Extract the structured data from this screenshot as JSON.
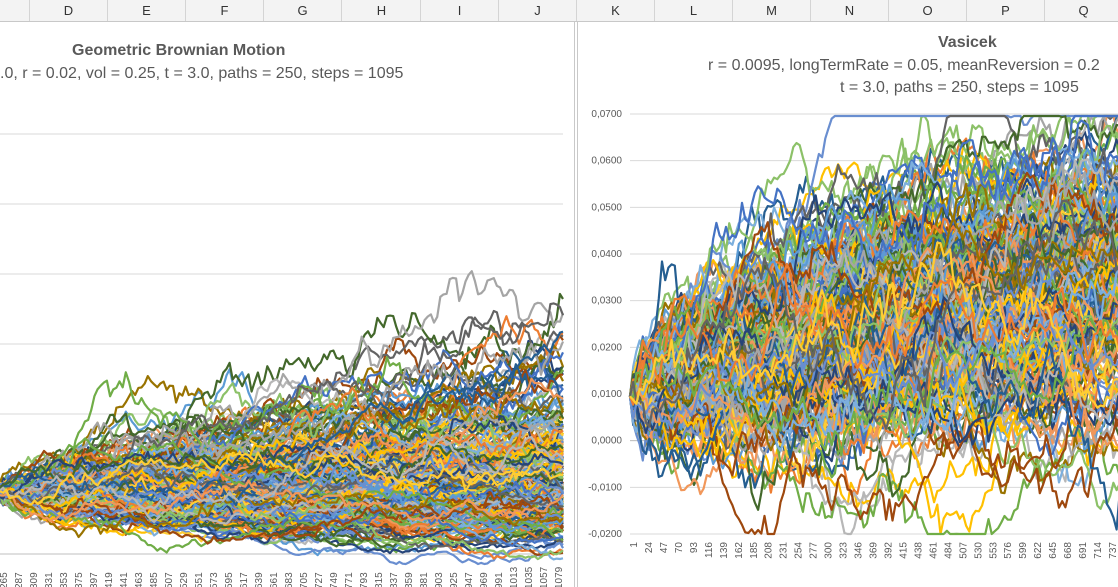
{
  "sheet": {
    "columns": [
      "D",
      "E",
      "F",
      "G",
      "H",
      "I",
      "J",
      "K",
      "L",
      "M",
      "N",
      "O",
      "P",
      "Q"
    ]
  },
  "chart_data": [
    {
      "type": "line",
      "title": "Geometric Brownian Motion",
      "subtitle": ".0, r = 0.02, vol = 0.25, t = 3.0, paths = 250, steps = 1095",
      "x_tick_labels": [
        "265",
        "287",
        "309",
        "331",
        "353",
        "375",
        "397",
        "419",
        "441",
        "463",
        "485",
        "507",
        "529",
        "551",
        "573",
        "595",
        "617",
        "639",
        "661",
        "683",
        "705",
        "727",
        "749",
        "771",
        "793",
        "815",
        "837",
        "859",
        "881",
        "903",
        "925",
        "947",
        "969",
        "991",
        "1013",
        "1035",
        "1057",
        "1079"
      ],
      "steps": 1095,
      "paths": 250,
      "ylim": [
        0.5,
        3.5
      ],
      "grid": true,
      "params": {
        "r": 0.02,
        "vol": 0.25,
        "t": 3.0
      }
    },
    {
      "type": "line",
      "title": "Vasicek",
      "subtitle_line1": "r = 0.0095, longTermRate = 0.05, meanReversion = 0.2",
      "subtitle_line2": "t = 3.0, paths = 250, steps = 1095",
      "y_tick_labels": [
        "0,0700",
        "0,0600",
        "0,0500",
        "0,0400",
        "0,0300",
        "0,0200",
        "0,0100",
        "0,0000",
        "-0,0100",
        "-0,0200"
      ],
      "ylim": [
        -0.02,
        0.07
      ],
      "x_tick_labels": [
        "1",
        "24",
        "47",
        "70",
        "93",
        "116",
        "139",
        "162",
        "185",
        "208",
        "231",
        "254",
        "277",
        "300",
        "323",
        "346",
        "369",
        "392",
        "415",
        "438",
        "461",
        "484",
        "507",
        "530",
        "553",
        "576",
        "599",
        "622",
        "645",
        "668",
        "691",
        "714",
        "737"
      ],
      "steps": 1095,
      "paths": 250,
      "grid": true,
      "params": {
        "r0": 0.0095,
        "longTermRate": 0.05,
        "meanReversion": 0.2,
        "t": 3.0
      }
    }
  ],
  "palette": [
    "#4472c4",
    "#ed7d31",
    "#a5a5a5",
    "#ffc000",
    "#5b9bd5",
    "#70ad47",
    "#264478",
    "#9e480e",
    "#636363",
    "#997300",
    "#255e91",
    "#43682b",
    "#698ed0",
    "#f1975a",
    "#b7b7b7",
    "#ffcd33",
    "#7cafdd",
    "#8cc168"
  ]
}
